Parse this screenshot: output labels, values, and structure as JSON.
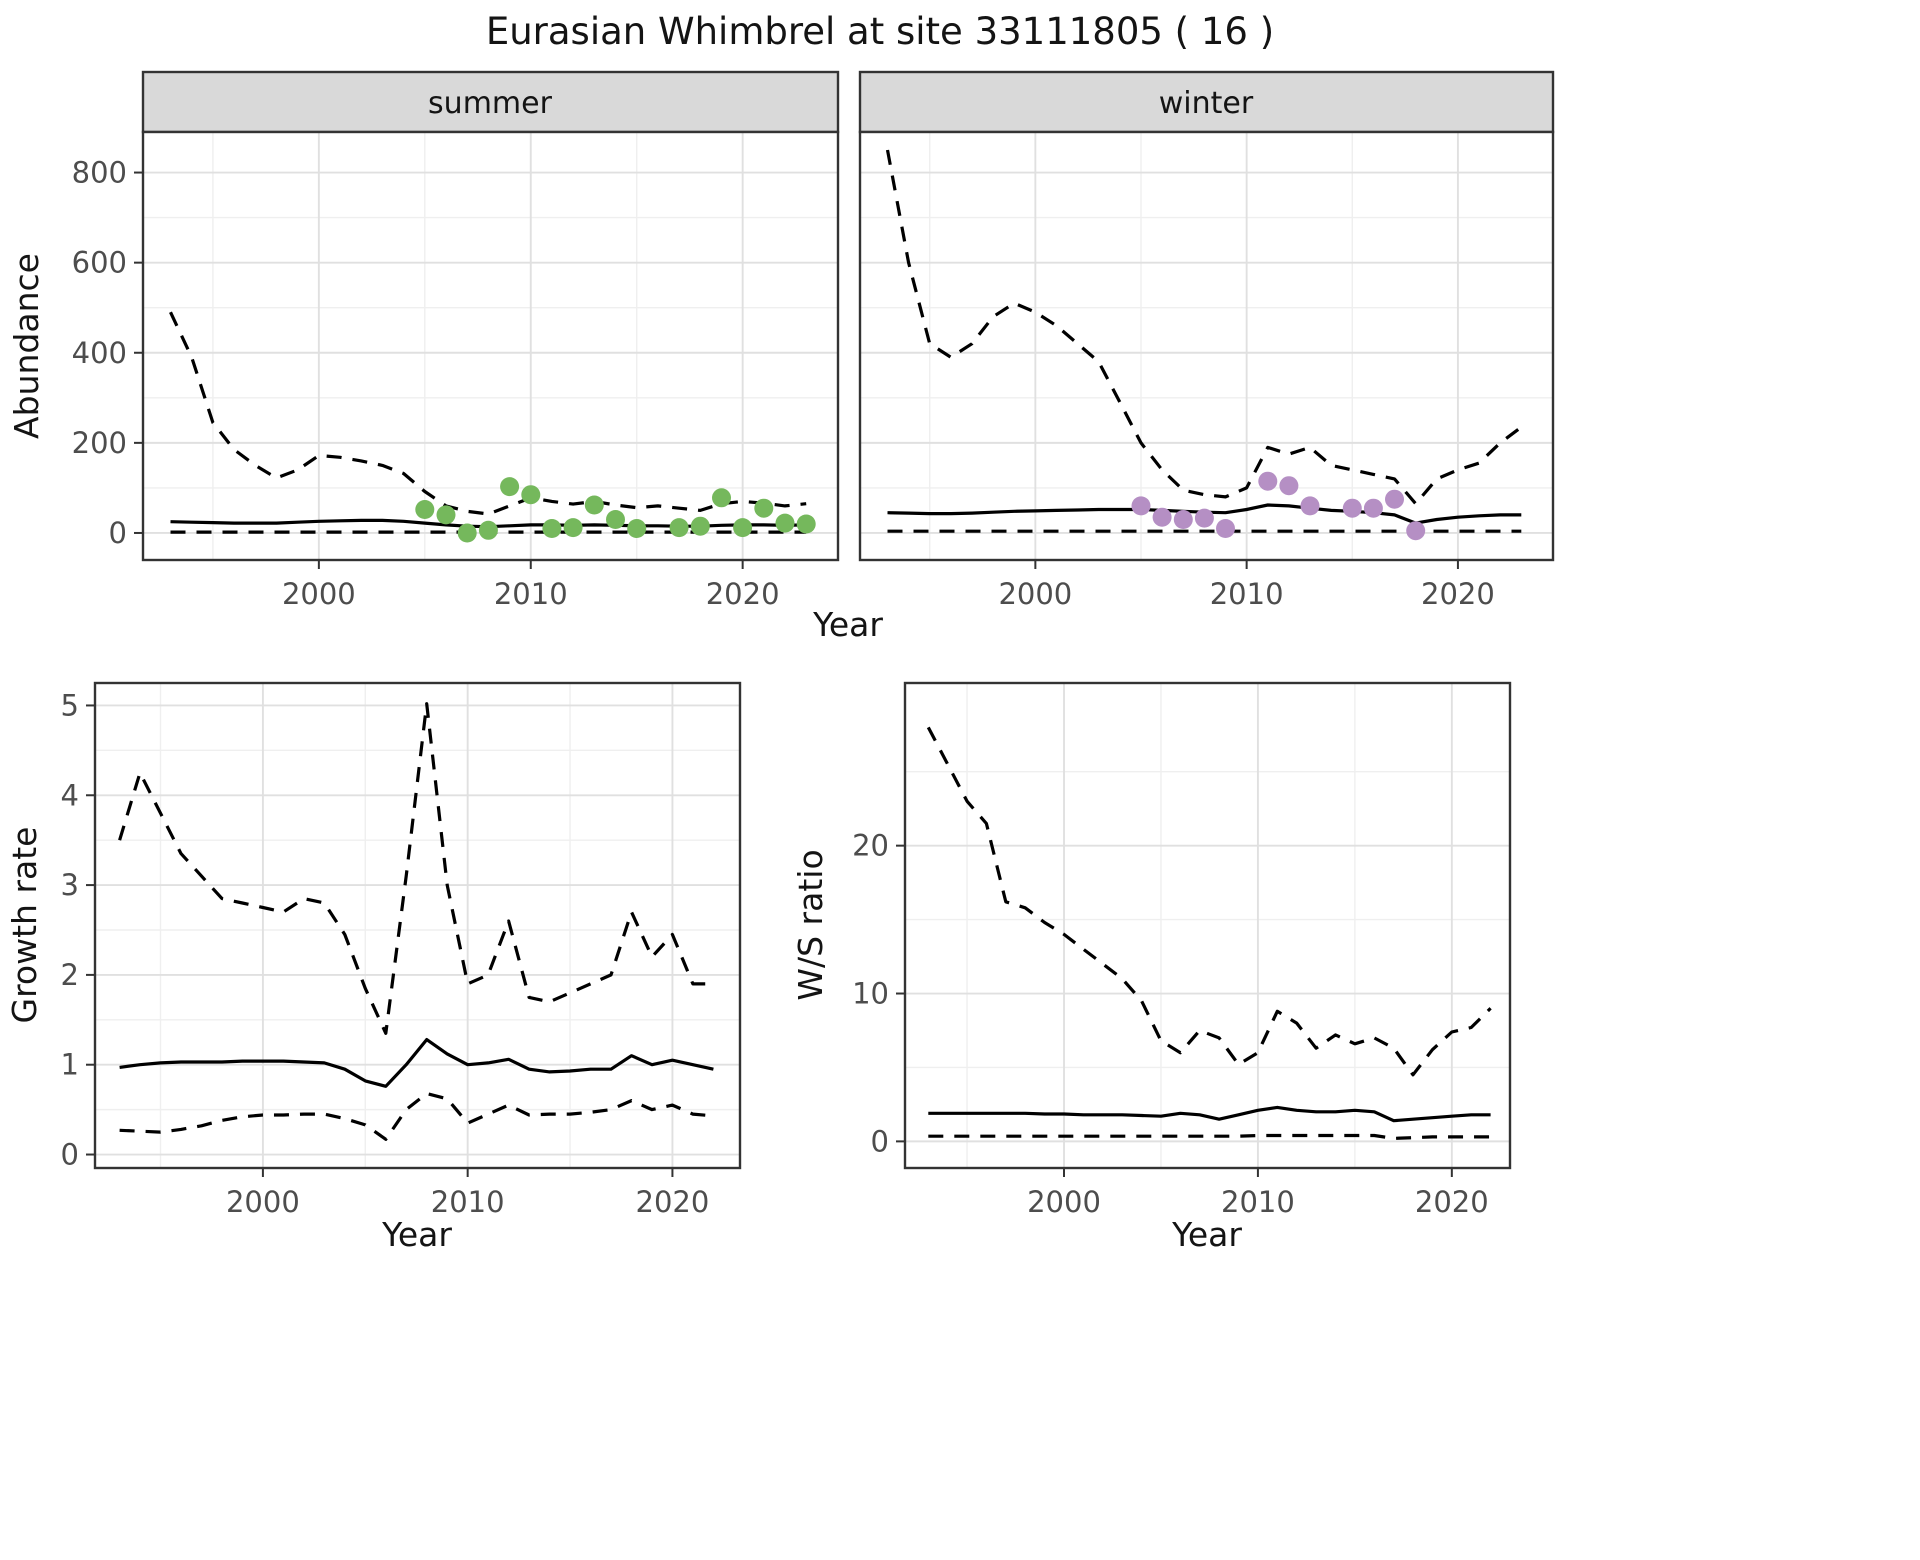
{
  "title": "Eurasian Whimbrel at site 33111805 ( 16 )",
  "colors": {
    "strip_bg": "#d9d9d9",
    "panel_bg": "#ffffff",
    "panel_border": "#333333",
    "grid_major": "#e0e0e0",
    "grid_minor": "#efefef",
    "line": "#000000",
    "summer_points": "#75b85c",
    "winter_points": "#b58fc4",
    "tick_text": "#4d4d4d"
  },
  "chart_data": [
    {
      "id": "abundance-summer",
      "type": "line",
      "facet_label": "summer",
      "xlabel": "Year",
      "ylabel": "Abundance",
      "xlim": [
        1991.7,
        2024.5
      ],
      "ylim": [
        -60,
        890
      ],
      "x_ticks": [
        2000,
        2010,
        2020
      ],
      "x_minor": [
        1995,
        2005,
        2015
      ],
      "y_ticks": [
        0,
        200,
        400,
        600,
        800
      ],
      "y_minor": [
        100,
        300,
        500,
        700
      ],
      "x": [
        1993,
        1994,
        1995,
        1996,
        1997,
        1998,
        1999,
        2000,
        2001,
        2002,
        2003,
        2004,
        2005,
        2006,
        2007,
        2008,
        2009,
        2010,
        2011,
        2012,
        2013,
        2014,
        2015,
        2016,
        2017,
        2018,
        2019,
        2020,
        2021,
        2022,
        2023
      ],
      "series": [
        {
          "name": "upper-95ci",
          "style": "dashed",
          "color": "#000000",
          "y": [
            490,
            390,
            245,
            185,
            150,
            122,
            140,
            172,
            168,
            160,
            150,
            132,
            92,
            60,
            48,
            42,
            60,
            78,
            70,
            64,
            70,
            62,
            56,
            60,
            55,
            50,
            65,
            70,
            66,
            60,
            65
          ]
        },
        {
          "name": "median",
          "style": "solid",
          "color": "#000000",
          "y": [
            25,
            24,
            23,
            22,
            22,
            22,
            24,
            26,
            27,
            28,
            28,
            26,
            22,
            18,
            15,
            14,
            16,
            18,
            18,
            17,
            18,
            17,
            16,
            16,
            15,
            15,
            17,
            18,
            18,
            17,
            18
          ]
        },
        {
          "name": "lower-95ci",
          "style": "dashed",
          "color": "#000000",
          "y": [
            2,
            2,
            2,
            2,
            2,
            2,
            2,
            2,
            2,
            2,
            2,
            2,
            2,
            2,
            2,
            2,
            2,
            2,
            2,
            2,
            2,
            2,
            2,
            2,
            2,
            2,
            2,
            2,
            2,
            2,
            2
          ]
        }
      ],
      "points": {
        "name": "observed-count-summer",
        "color": "#75b85c",
        "x": [
          2005,
          2006,
          2007,
          2008,
          2009,
          2010,
          2011,
          2012,
          2013,
          2014,
          2015,
          2017,
          2018,
          2019,
          2020,
          2021,
          2022,
          2023
        ],
        "y": [
          52,
          40,
          0,
          6,
          103,
          85,
          10,
          12,
          62,
          30,
          10,
          12,
          15,
          78,
          12,
          55,
          22,
          20
        ]
      }
    },
    {
      "id": "abundance-winter",
      "type": "line",
      "facet_label": "winter",
      "xlabel": "",
      "ylabel": "",
      "xlim": [
        1991.7,
        2024.5
      ],
      "ylim": [
        -60,
        890
      ],
      "x_ticks": [
        2000,
        2010,
        2020
      ],
      "x_minor": [
        1995,
        2005,
        2015
      ],
      "y_ticks": [
        0,
        200,
        400,
        600,
        800
      ],
      "y_minor": [
        100,
        300,
        500,
        700
      ],
      "x": [
        1993,
        1994,
        1995,
        1996,
        1997,
        1998,
        1999,
        2000,
        2001,
        2002,
        2003,
        2004,
        2005,
        2006,
        2007,
        2008,
        2009,
        2010,
        2011,
        2012,
        2013,
        2014,
        2015,
        2016,
        2017,
        2018,
        2019,
        2020,
        2021,
        2022,
        2023
      ],
      "series": [
        {
          "name": "upper-95ci",
          "style": "dashed",
          "color": "#000000",
          "y": [
            850,
            600,
            420,
            390,
            420,
            480,
            510,
            490,
            460,
            420,
            380,
            290,
            200,
            140,
            95,
            85,
            80,
            100,
            190,
            175,
            190,
            150,
            140,
            130,
            120,
            65,
            120,
            140,
            155,
            200,
            235
          ]
        },
        {
          "name": "median",
          "style": "solid",
          "color": "#000000",
          "y": [
            45,
            44,
            43,
            43,
            44,
            46,
            48,
            49,
            50,
            51,
            52,
            52,
            52,
            50,
            48,
            46,
            45,
            52,
            62,
            60,
            55,
            50,
            48,
            45,
            40,
            22,
            30,
            35,
            38,
            40,
            40
          ]
        },
        {
          "name": "lower-95ci",
          "style": "dashed",
          "color": "#000000",
          "y": [
            4,
            4,
            4,
            4,
            4,
            4,
            4,
            4,
            4,
            4,
            4,
            4,
            4,
            4,
            4,
            4,
            4,
            4,
            4,
            4,
            4,
            4,
            4,
            4,
            4,
            4,
            4,
            4,
            4,
            4,
            4
          ]
        }
      ],
      "points": {
        "name": "observed-count-winter",
        "color": "#b58fc4",
        "x": [
          2005,
          2006,
          2007,
          2008,
          2009,
          2011,
          2012,
          2013,
          2015,
          2016,
          2017,
          2018
        ],
        "y": [
          60,
          35,
          30,
          33,
          10,
          115,
          105,
          60,
          55,
          55,
          75,
          5
        ]
      }
    },
    {
      "id": "growth-rate",
      "type": "line",
      "xlabel": "Year",
      "ylabel": "Growth rate",
      "xlim": [
        1991.8,
        2023.3
      ],
      "ylim": [
        -0.15,
        5.25
      ],
      "x_ticks": [
        2000,
        2010,
        2020
      ],
      "x_minor": [
        1995,
        2005,
        2015
      ],
      "y_ticks": [
        0,
        1,
        2,
        3,
        4,
        5
      ],
      "y_minor": [
        0.5,
        1.5,
        2.5,
        3.5,
        4.5
      ],
      "x": [
        1993,
        1994,
        1995,
        1996,
        1997,
        1998,
        1999,
        2000,
        2001,
        2002,
        2003,
        2004,
        2005,
        2006,
        2007,
        2008,
        2009,
        2010,
        2011,
        2012,
        2013,
        2014,
        2015,
        2016,
        2017,
        2018,
        2019,
        2020,
        2021,
        2022
      ],
      "series": [
        {
          "name": "upper-95ci",
          "style": "dashed",
          "color": "#000000",
          "y": [
            3.5,
            4.25,
            3.8,
            3.35,
            3.1,
            2.85,
            2.8,
            2.75,
            2.7,
            2.85,
            2.8,
            2.45,
            1.85,
            1.35,
            3.1,
            5.02,
            3.0,
            1.9,
            2.0,
            2.6,
            1.75,
            1.7,
            1.8,
            1.9,
            2.0,
            2.7,
            2.2,
            2.45,
            1.9,
            1.9
          ]
        },
        {
          "name": "median",
          "style": "solid",
          "color": "#000000",
          "y": [
            0.97,
            1.0,
            1.02,
            1.03,
            1.03,
            1.03,
            1.04,
            1.04,
            1.04,
            1.03,
            1.02,
            0.95,
            0.82,
            0.76,
            1.0,
            1.28,
            1.12,
            1.0,
            1.02,
            1.06,
            0.95,
            0.92,
            0.93,
            0.95,
            0.95,
            1.1,
            1.0,
            1.05,
            1.0,
            0.95
          ]
        },
        {
          "name": "lower-95ci",
          "style": "dashed",
          "color": "#000000",
          "y": [
            0.27,
            0.26,
            0.25,
            0.28,
            0.32,
            0.38,
            0.42,
            0.44,
            0.44,
            0.45,
            0.45,
            0.4,
            0.33,
            0.17,
            0.5,
            0.68,
            0.62,
            0.35,
            0.45,
            0.55,
            0.44,
            0.45,
            0.45,
            0.47,
            0.5,
            0.6,
            0.5,
            0.55,
            0.45,
            0.43
          ]
        }
      ]
    },
    {
      "id": "ws-ratio",
      "type": "line",
      "xlabel": "Year",
      "ylabel": "W/S ratio",
      "xlim": [
        1991.8,
        2023.0
      ],
      "ylim": [
        -1.8,
        31
      ],
      "x_ticks": [
        2000,
        2010,
        2020
      ],
      "x_minor": [
        1995,
        2005,
        2015
      ],
      "y_ticks": [
        0,
        10,
        20
      ],
      "y_minor": [
        5,
        15,
        25
      ],
      "x": [
        1993,
        1994,
        1995,
        1996,
        1997,
        1998,
        1999,
        2000,
        2001,
        2002,
        2003,
        2004,
        2005,
        2006,
        2007,
        2008,
        2009,
        2010,
        2011,
        2012,
        2013,
        2014,
        2015,
        2016,
        2017,
        2018,
        2019,
        2020,
        2021,
        2022
      ],
      "series": [
        {
          "name": "upper-95ci",
          "style": "dashed",
          "color": "#000000",
          "y": [
            28,
            25.5,
            23,
            21.5,
            16.2,
            15.8,
            14.8,
            14,
            13,
            12,
            11,
            9.5,
            6.8,
            6.0,
            7.5,
            7.0,
            5.2,
            6.0,
            8.8,
            8.0,
            6.3,
            7.2,
            6.6,
            7.0,
            6.3,
            4.5,
            6.2,
            7.4,
            7.7,
            9.0
          ]
        },
        {
          "name": "median",
          "style": "solid",
          "color": "#000000",
          "y": [
            1.9,
            1.9,
            1.9,
            1.9,
            1.9,
            1.9,
            1.85,
            1.85,
            1.8,
            1.8,
            1.8,
            1.75,
            1.7,
            1.9,
            1.8,
            1.5,
            1.8,
            2.1,
            2.3,
            2.1,
            2.0,
            2.0,
            2.1,
            2.0,
            1.4,
            1.5,
            1.6,
            1.7,
            1.8,
            1.8
          ]
        },
        {
          "name": "lower-95ci",
          "style": "dashed",
          "color": "#000000",
          "y": [
            0.35,
            0.35,
            0.35,
            0.35,
            0.35,
            0.35,
            0.35,
            0.35,
            0.35,
            0.35,
            0.35,
            0.35,
            0.35,
            0.35,
            0.35,
            0.35,
            0.35,
            0.4,
            0.4,
            0.4,
            0.4,
            0.4,
            0.4,
            0.4,
            0.2,
            0.25,
            0.3,
            0.3,
            0.3,
            0.3
          ]
        }
      ]
    }
  ]
}
